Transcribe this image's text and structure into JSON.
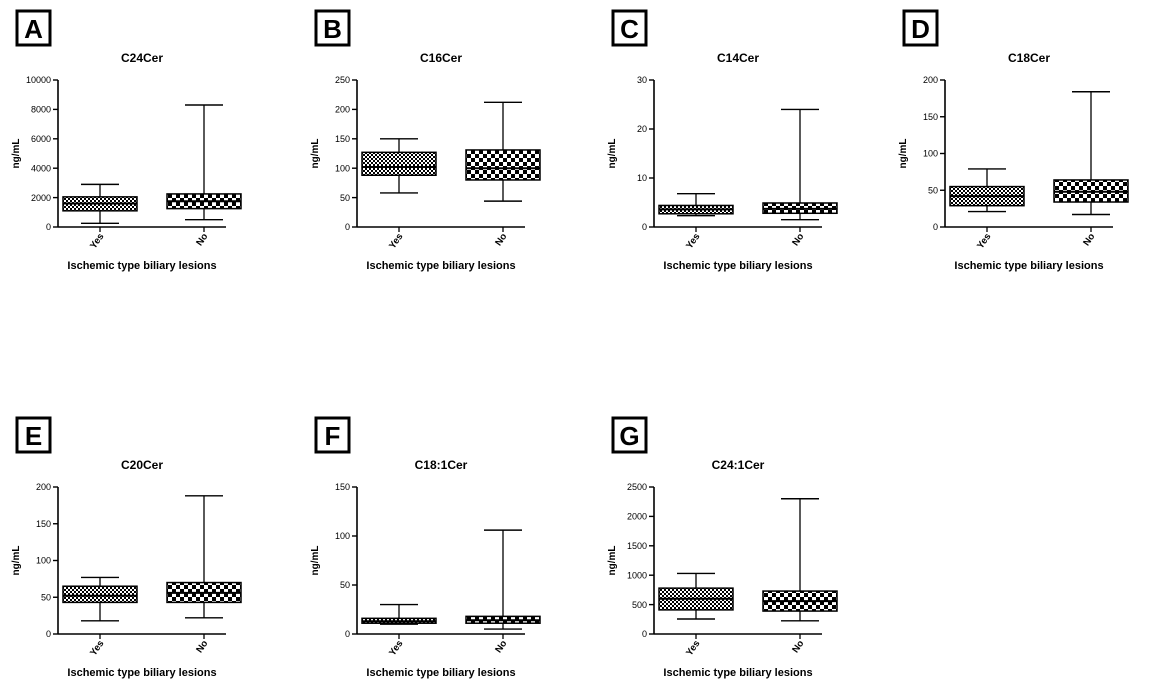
{
  "chart_data": [
    {
      "type": "box",
      "panel_label": "A",
      "title": "C24Cer",
      "xlabel": "Ischemic type biliary lesions",
      "ylabel": "ng/mL",
      "ylim": [
        0,
        10000
      ],
      "yticks": [
        0,
        2000,
        4000,
        6000,
        8000,
        10000
      ],
      "categories": [
        "Yes",
        "No"
      ],
      "boxes": [
        {
          "category": "Yes",
          "min": 250,
          "q1": 1100,
          "median": 1600,
          "q3": 2050,
          "max": 2900
        },
        {
          "category": "No",
          "min": 500,
          "q1": 1250,
          "median": 1750,
          "q3": 2250,
          "max": 8300
        }
      ]
    },
    {
      "type": "box",
      "panel_label": "B",
      "title": "C16Cer",
      "xlabel": "Ischemic type biliary lesions",
      "ylabel": "ng/mL",
      "ylim": [
        0,
        250
      ],
      "yticks": [
        0,
        50,
        100,
        150,
        200,
        250
      ],
      "categories": [
        "Yes",
        "No"
      ],
      "boxes": [
        {
          "category": "Yes",
          "min": 58,
          "q1": 88,
          "median": 102,
          "q3": 127,
          "max": 150
        },
        {
          "category": "No",
          "min": 44,
          "q1": 80,
          "median": 100,
          "q3": 131,
          "max": 212
        }
      ]
    },
    {
      "type": "box",
      "panel_label": "C",
      "title": "C14Cer",
      "xlabel": "Ischemic type biliary lesions",
      "ylabel": "ng/mL",
      "ylim": [
        0,
        30
      ],
      "yticks": [
        0,
        10,
        20,
        30
      ],
      "categories": [
        "Yes",
        "No"
      ],
      "boxes": [
        {
          "category": "Yes",
          "min": 2.3,
          "q1": 2.7,
          "median": 3.6,
          "q3": 4.4,
          "max": 6.8
        },
        {
          "category": "No",
          "min": 1.5,
          "q1": 2.8,
          "median": 3.7,
          "q3": 4.9,
          "max": 24
        }
      ]
    },
    {
      "type": "box",
      "panel_label": "D",
      "title": "C18Cer",
      "xlabel": "Ischemic type biliary lesions",
      "ylabel": "ng/mL",
      "ylim": [
        0,
        200
      ],
      "yticks": [
        0,
        50,
        100,
        150,
        200
      ],
      "categories": [
        "Yes",
        "No"
      ],
      "boxes": [
        {
          "category": "Yes",
          "min": 21,
          "q1": 29,
          "median": 42,
          "q3": 55,
          "max": 79
        },
        {
          "category": "No",
          "min": 17,
          "q1": 34,
          "median": 48,
          "q3": 64,
          "max": 184
        }
      ]
    },
    {
      "type": "box",
      "panel_label": "E",
      "title": "C20Cer",
      "xlabel": "Ischemic type biliary lesions",
      "ylabel": "ng/mL",
      "ylim": [
        0,
        200
      ],
      "yticks": [
        0,
        50,
        100,
        150,
        200
      ],
      "categories": [
        "Yes",
        "No"
      ],
      "boxes": [
        {
          "category": "Yes",
          "min": 18,
          "q1": 43,
          "median": 52,
          "q3": 65,
          "max": 77
        },
        {
          "category": "No",
          "min": 22,
          "q1": 43,
          "median": 56,
          "q3": 70,
          "max": 188
        }
      ]
    },
    {
      "type": "box",
      "panel_label": "F",
      "title": "C18:1Cer",
      "xlabel": "Ischemic type biliary lesions",
      "ylabel": "ng/mL",
      "ylim": [
        0,
        150
      ],
      "yticks": [
        0,
        50,
        100,
        150
      ],
      "categories": [
        "Yes",
        "No"
      ],
      "boxes": [
        {
          "category": "Yes",
          "min": 10,
          "q1": 11,
          "median": 13,
          "q3": 16,
          "max": 30
        },
        {
          "category": "No",
          "min": 5,
          "q1": 11,
          "median": 14,
          "q3": 18,
          "max": 106
        }
      ]
    },
    {
      "type": "box",
      "panel_label": "G",
      "title": "C24:1Cer",
      "xlabel": "Ischemic type biliary lesions",
      "ylabel": "ng/mL",
      "ylim": [
        0,
        2500
      ],
      "yticks": [
        0,
        500,
        1000,
        1500,
        2000,
        2500
      ],
      "categories": [
        "Yes",
        "No"
      ],
      "boxes": [
        {
          "category": "Yes",
          "min": 255,
          "q1": 410,
          "median": 600,
          "q3": 780,
          "max": 1030
        },
        {
          "category": "No",
          "min": 225,
          "q1": 390,
          "median": 560,
          "q3": 730,
          "max": 2300
        }
      ]
    }
  ]
}
